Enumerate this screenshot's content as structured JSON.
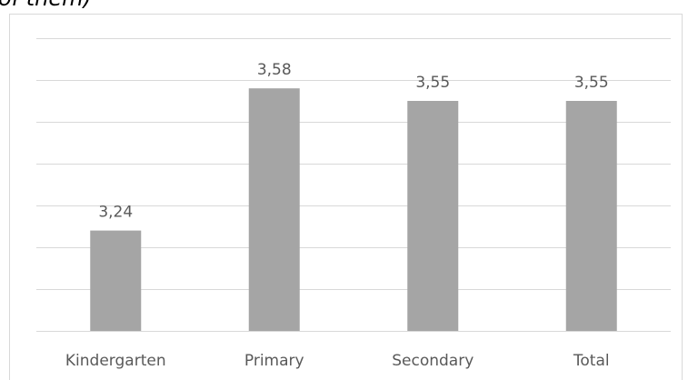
{
  "chart_data": {
    "type": "bar",
    "title": "of them)",
    "categories": [
      "Kindergarten",
      "Primary",
      "Secondary",
      "Total"
    ],
    "values": [
      3.24,
      3.58,
      3.55,
      3.55
    ],
    "value_labels": [
      "3,24",
      "3,58",
      "3,55",
      "3,55"
    ],
    "color": "#a5a5a5",
    "ylim": [
      3.0,
      3.7
    ],
    "yticks": [
      3.0,
      3.1,
      3.2,
      3.3,
      3.4,
      3.5,
      3.6,
      3.7
    ],
    "grid": true
  }
}
